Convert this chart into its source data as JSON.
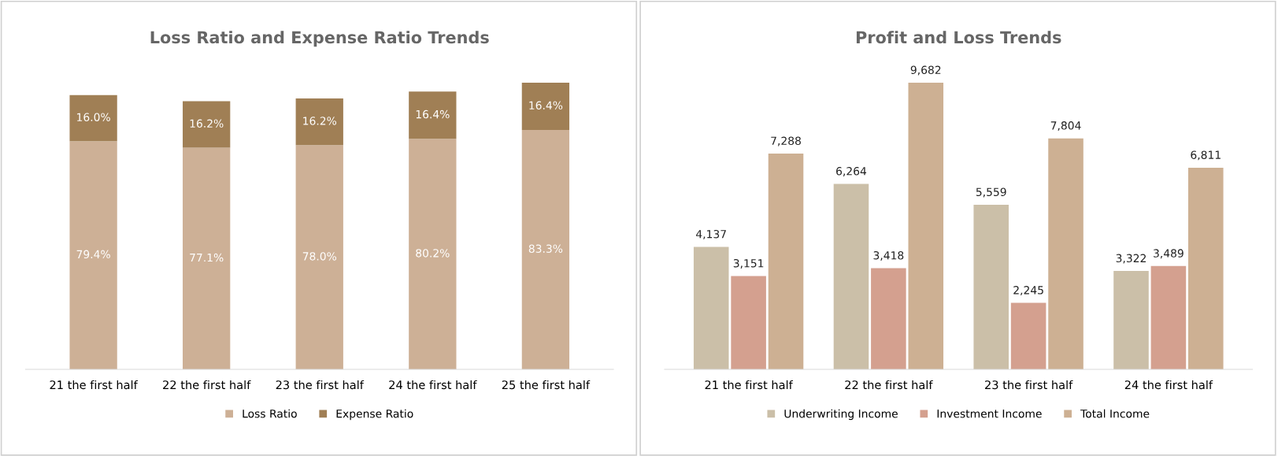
{
  "chart_data": [
    {
      "type": "bar",
      "title": "Loss Ratio and Expense Ratio Trends",
      "stacked": true,
      "legend": "bottom",
      "grid": false,
      "tick_labels": "x",
      "categories": [
        "21 the first half",
        "22 the first half",
        "23 the first half",
        "24 the first half",
        "25 the first half"
      ],
      "series": [
        {
          "name": "Loss Ratio",
          "color": "#cdb096",
          "values": [
            79.4,
            77.1,
            78.0,
            80.2,
            83.3
          ],
          "value_labels": [
            "79.4%",
            "77.1%",
            "78.0%",
            "80.2%",
            "83.3%"
          ]
        },
        {
          "name": "Expense Ratio",
          "color": "#a07f55",
          "values": [
            16.0,
            16.2,
            16.2,
            16.4,
            16.4
          ],
          "value_labels": [
            "16.0%",
            "16.2%",
            "16.2%",
            "16.4%",
            "16.4%"
          ]
        }
      ]
    },
    {
      "type": "bar",
      "title": "Profit and Loss Trends",
      "legend": "bottom",
      "grid": false,
      "tick_labels": "x",
      "categories": [
        "21 the first half",
        "22 the first half",
        "23 the first half",
        "24 the first half"
      ],
      "series": [
        {
          "name": "Underwriting Income",
          "color": "#cbbfa8",
          "values": [
            4137,
            6264,
            5559,
            3322
          ],
          "value_labels": [
            "4,137",
            "6,264",
            "5,559",
            "3,322"
          ]
        },
        {
          "name": "Investment Income",
          "color": "#d4a08f",
          "values": [
            3151,
            3418,
            2245,
            3489
          ],
          "value_labels": [
            "3,151",
            "3,418",
            "2,245",
            "3,489"
          ]
        },
        {
          "name": "Total Income",
          "color": "#cdb093",
          "values": [
            7288,
            9682,
            7804,
            6811
          ],
          "value_labels": [
            "7,288",
            "9,682",
            "7,804",
            "6,811"
          ]
        }
      ]
    }
  ]
}
